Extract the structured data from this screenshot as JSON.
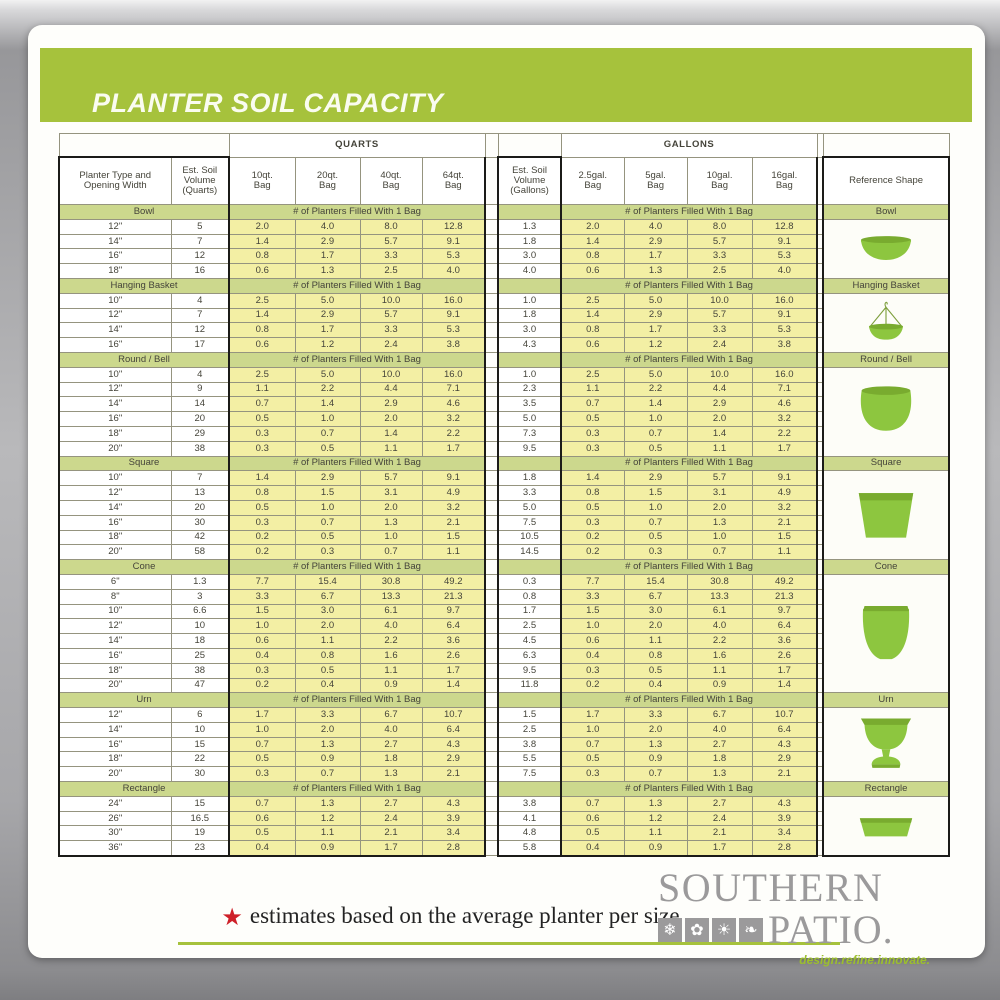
{
  "title": "PLANTER SOIL CAPACITY",
  "table": {
    "group_headers": {
      "quarts": "QUARTS",
      "gallons": "GALLONS"
    },
    "columns": {
      "planter": "Planter Type and\nOpening Width",
      "est_quarts": "Est. Soil\nVolume\n(Quarts)",
      "qt_bags": [
        "10qt.\nBag",
        "20qt.\nBag",
        "40qt.\nBag",
        "64qt.\nBag"
      ],
      "est_gallons": "Est. Soil\nVolume\n(Gallons)",
      "gal_bags": [
        "2.5gal.\nBag",
        "5gal.\nBag",
        "10gal.\nBag",
        "16gal.\nBag"
      ],
      "reference": "Reference Shape"
    },
    "fill_label": "# of Planters Filled With 1 Bag",
    "sections": [
      {
        "name": "Bowl",
        "shape": "bowl",
        "rows": [
          {
            "size": "12\"",
            "est_q": "5",
            "qt": [
              "2.0",
              "4.0",
              "8.0",
              "12.8"
            ],
            "est_g": "1.3",
            "gal": [
              "2.0",
              "4.0",
              "8.0",
              "12.8"
            ]
          },
          {
            "size": "14\"",
            "est_q": "7",
            "qt": [
              "1.4",
              "2.9",
              "5.7",
              "9.1"
            ],
            "est_g": "1.8",
            "gal": [
              "1.4",
              "2.9",
              "5.7",
              "9.1"
            ]
          },
          {
            "size": "16\"",
            "est_q": "12",
            "qt": [
              "0.8",
              "1.7",
              "3.3",
              "5.3"
            ],
            "est_g": "3.0",
            "gal": [
              "0.8",
              "1.7",
              "3.3",
              "5.3"
            ]
          },
          {
            "size": "18\"",
            "est_q": "16",
            "qt": [
              "0.6",
              "1.3",
              "2.5",
              "4.0"
            ],
            "est_g": "4.0",
            "gal": [
              "0.6",
              "1.3",
              "2.5",
              "4.0"
            ]
          }
        ]
      },
      {
        "name": "Hanging Basket",
        "shape": "hanging-basket",
        "rows": [
          {
            "size": "10\"",
            "est_q": "4",
            "qt": [
              "2.5",
              "5.0",
              "10.0",
              "16.0"
            ],
            "est_g": "1.0",
            "gal": [
              "2.5",
              "5.0",
              "10.0",
              "16.0"
            ]
          },
          {
            "size": "12\"",
            "est_q": "7",
            "qt": [
              "1.4",
              "2.9",
              "5.7",
              "9.1"
            ],
            "est_g": "1.8",
            "gal": [
              "1.4",
              "2.9",
              "5.7",
              "9.1"
            ]
          },
          {
            "size": "14\"",
            "est_q": "12",
            "qt": [
              "0.8",
              "1.7",
              "3.3",
              "5.3"
            ],
            "est_g": "3.0",
            "gal": [
              "0.8",
              "1.7",
              "3.3",
              "5.3"
            ]
          },
          {
            "size": "16\"",
            "est_q": "17",
            "qt": [
              "0.6",
              "1.2",
              "2.4",
              "3.8"
            ],
            "est_g": "4.3",
            "gal": [
              "0.6",
              "1.2",
              "2.4",
              "3.8"
            ]
          }
        ]
      },
      {
        "name": "Round / Bell",
        "shape": "round-bell",
        "rows": [
          {
            "size": "10\"",
            "est_q": "4",
            "qt": [
              "2.5",
              "5.0",
              "10.0",
              "16.0"
            ],
            "est_g": "1.0",
            "gal": [
              "2.5",
              "5.0",
              "10.0",
              "16.0"
            ]
          },
          {
            "size": "12\"",
            "est_q": "9",
            "qt": [
              "1.1",
              "2.2",
              "4.4",
              "7.1"
            ],
            "est_g": "2.3",
            "gal": [
              "1.1",
              "2.2",
              "4.4",
              "7.1"
            ]
          },
          {
            "size": "14\"",
            "est_q": "14",
            "qt": [
              "0.7",
              "1.4",
              "2.9",
              "4.6"
            ],
            "est_g": "3.5",
            "gal": [
              "0.7",
              "1.4",
              "2.9",
              "4.6"
            ]
          },
          {
            "size": "16\"",
            "est_q": "20",
            "qt": [
              "0.5",
              "1.0",
              "2.0",
              "3.2"
            ],
            "est_g": "5.0",
            "gal": [
              "0.5",
              "1.0",
              "2.0",
              "3.2"
            ]
          },
          {
            "size": "18\"",
            "est_q": "29",
            "qt": [
              "0.3",
              "0.7",
              "1.4",
              "2.2"
            ],
            "est_g": "7.3",
            "gal": [
              "0.3",
              "0.7",
              "1.4",
              "2.2"
            ]
          },
          {
            "size": "20\"",
            "est_q": "38",
            "qt": [
              "0.3",
              "0.5",
              "1.1",
              "1.7"
            ],
            "est_g": "9.5",
            "gal": [
              "0.3",
              "0.5",
              "1.1",
              "1.7"
            ]
          }
        ]
      },
      {
        "name": "Square",
        "shape": "square",
        "rows": [
          {
            "size": "10\"",
            "est_q": "7",
            "qt": [
              "1.4",
              "2.9",
              "5.7",
              "9.1"
            ],
            "est_g": "1.8",
            "gal": [
              "1.4",
              "2.9",
              "5.7",
              "9.1"
            ]
          },
          {
            "size": "12\"",
            "est_q": "13",
            "qt": [
              "0.8",
              "1.5",
              "3.1",
              "4.9"
            ],
            "est_g": "3.3",
            "gal": [
              "0.8",
              "1.5",
              "3.1",
              "4.9"
            ]
          },
          {
            "size": "14\"",
            "est_q": "20",
            "qt": [
              "0.5",
              "1.0",
              "2.0",
              "3.2"
            ],
            "est_g": "5.0",
            "gal": [
              "0.5",
              "1.0",
              "2.0",
              "3.2"
            ]
          },
          {
            "size": "16\"",
            "est_q": "30",
            "qt": [
              "0.3",
              "0.7",
              "1.3",
              "2.1"
            ],
            "est_g": "7.5",
            "gal": [
              "0.3",
              "0.7",
              "1.3",
              "2.1"
            ]
          },
          {
            "size": "18\"",
            "est_q": "42",
            "qt": [
              "0.2",
              "0.5",
              "1.0",
              "1.5"
            ],
            "est_g": "10.5",
            "gal": [
              "0.2",
              "0.5",
              "1.0",
              "1.5"
            ]
          },
          {
            "size": "20\"",
            "est_q": "58",
            "qt": [
              "0.2",
              "0.3",
              "0.7",
              "1.1"
            ],
            "est_g": "14.5",
            "gal": [
              "0.2",
              "0.3",
              "0.7",
              "1.1"
            ]
          }
        ]
      },
      {
        "name": "Cone",
        "shape": "cone",
        "rows": [
          {
            "size": "6\"",
            "est_q": "1.3",
            "qt": [
              "7.7",
              "15.4",
              "30.8",
              "49.2"
            ],
            "est_g": "0.3",
            "gal": [
              "7.7",
              "15.4",
              "30.8",
              "49.2"
            ]
          },
          {
            "size": "8\"",
            "est_q": "3",
            "qt": [
              "3.3",
              "6.7",
              "13.3",
              "21.3"
            ],
            "est_g": "0.8",
            "gal": [
              "3.3",
              "6.7",
              "13.3",
              "21.3"
            ]
          },
          {
            "size": "10\"",
            "est_q": "6.6",
            "qt": [
              "1.5",
              "3.0",
              "6.1",
              "9.7"
            ],
            "est_g": "1.7",
            "gal": [
              "1.5",
              "3.0",
              "6.1",
              "9.7"
            ]
          },
          {
            "size": "12\"",
            "est_q": "10",
            "qt": [
              "1.0",
              "2.0",
              "4.0",
              "6.4"
            ],
            "est_g": "2.5",
            "gal": [
              "1.0",
              "2.0",
              "4.0",
              "6.4"
            ]
          },
          {
            "size": "14\"",
            "est_q": "18",
            "qt": [
              "0.6",
              "1.1",
              "2.2",
              "3.6"
            ],
            "est_g": "4.5",
            "gal": [
              "0.6",
              "1.1",
              "2.2",
              "3.6"
            ]
          },
          {
            "size": "16\"",
            "est_q": "25",
            "qt": [
              "0.4",
              "0.8",
              "1.6",
              "2.6"
            ],
            "est_g": "6.3",
            "gal": [
              "0.4",
              "0.8",
              "1.6",
              "2.6"
            ]
          },
          {
            "size": "18\"",
            "est_q": "38",
            "qt": [
              "0.3",
              "0.5",
              "1.1",
              "1.7"
            ],
            "est_g": "9.5",
            "gal": [
              "0.3",
              "0.5",
              "1.1",
              "1.7"
            ]
          },
          {
            "size": "20\"",
            "est_q": "47",
            "qt": [
              "0.2",
              "0.4",
              "0.9",
              "1.4"
            ],
            "est_g": "11.8",
            "gal": [
              "0.2",
              "0.4",
              "0.9",
              "1.4"
            ]
          }
        ]
      },
      {
        "name": "Urn",
        "shape": "urn",
        "rows": [
          {
            "size": "12\"",
            "est_q": "6",
            "qt": [
              "1.7",
              "3.3",
              "6.7",
              "10.7"
            ],
            "est_g": "1.5",
            "gal": [
              "1.7",
              "3.3",
              "6.7",
              "10.7"
            ]
          },
          {
            "size": "14\"",
            "est_q": "10",
            "qt": [
              "1.0",
              "2.0",
              "4.0",
              "6.4"
            ],
            "est_g": "2.5",
            "gal": [
              "1.0",
              "2.0",
              "4.0",
              "6.4"
            ]
          },
          {
            "size": "16\"",
            "est_q": "15",
            "qt": [
              "0.7",
              "1.3",
              "2.7",
              "4.3"
            ],
            "est_g": "3.8",
            "gal": [
              "0.7",
              "1.3",
              "2.7",
              "4.3"
            ]
          },
          {
            "size": "18\"",
            "est_q": "22",
            "qt": [
              "0.5",
              "0.9",
              "1.8",
              "2.9"
            ],
            "est_g": "5.5",
            "gal": [
              "0.5",
              "0.9",
              "1.8",
              "2.9"
            ]
          },
          {
            "size": "20\"",
            "est_q": "30",
            "qt": [
              "0.3",
              "0.7",
              "1.3",
              "2.1"
            ],
            "est_g": "7.5",
            "gal": [
              "0.3",
              "0.7",
              "1.3",
              "2.1"
            ]
          }
        ]
      },
      {
        "name": "Rectangle",
        "shape": "rectangle",
        "rows": [
          {
            "size": "24\"",
            "est_q": "15",
            "qt": [
              "0.7",
              "1.3",
              "2.7",
              "4.3"
            ],
            "est_g": "3.8",
            "gal": [
              "0.7",
              "1.3",
              "2.7",
              "4.3"
            ]
          },
          {
            "size": "26\"",
            "est_q": "16.5",
            "qt": [
              "0.6",
              "1.2",
              "2.4",
              "3.9"
            ],
            "est_g": "4.1",
            "gal": [
              "0.6",
              "1.2",
              "2.4",
              "3.9"
            ]
          },
          {
            "size": "30\"",
            "est_q": "19",
            "qt": [
              "0.5",
              "1.1",
              "2.1",
              "3.4"
            ],
            "est_g": "4.8",
            "gal": [
              "0.5",
              "1.1",
              "2.1",
              "3.4"
            ]
          },
          {
            "size": "36\"",
            "est_q": "23",
            "qt": [
              "0.4",
              "0.9",
              "1.7",
              "2.8"
            ],
            "est_g": "5.8",
            "gal": [
              "0.4",
              "0.9",
              "1.7",
              "2.8"
            ]
          }
        ]
      }
    ]
  },
  "footer": {
    "note": "estimates based on the average planter per size",
    "brand_top": "SOUTHERN",
    "brand_bottom": "PATIO.",
    "tagline": "design.refine.innovate.",
    "logo_icons": [
      "snowflake-icon",
      "flower-icon",
      "sun-icon",
      "leaf-icon"
    ]
  },
  "colors": {
    "accent_green": "#a6c23c",
    "band_green": "#ccd88d",
    "cell_yellow": "#f3efa4",
    "planter_green": "#8dc63f",
    "star_red": "#ce2029",
    "logo_gray": "#9b9a9b"
  }
}
